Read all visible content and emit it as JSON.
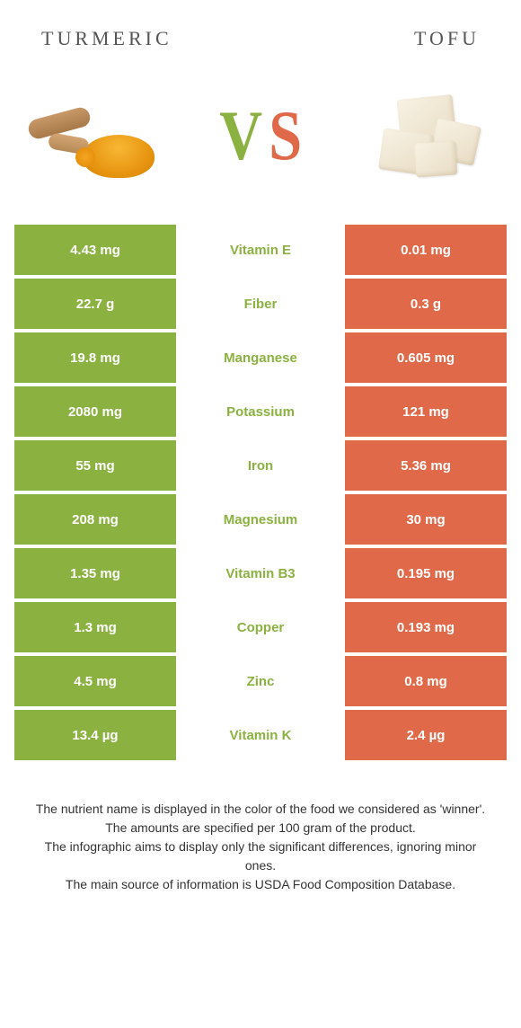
{
  "header": {
    "left": "Turmeric",
    "right": "Tofu"
  },
  "vs": {
    "v": "V",
    "s": "S"
  },
  "colors": {
    "left": "#8bb140",
    "right": "#e0694a",
    "row_alt_darken": 0,
    "vs_v": "#8bb140",
    "vs_s": "#e0694a"
  },
  "table": {
    "rows": [
      {
        "left": "4.43 mg",
        "mid": "Vitamin E",
        "right": "0.01 mg",
        "mid_color": "#8bb140"
      },
      {
        "left": "22.7 g",
        "mid": "Fiber",
        "right": "0.3 g",
        "mid_color": "#8bb140"
      },
      {
        "left": "19.8 mg",
        "mid": "Manganese",
        "right": "0.605 mg",
        "mid_color": "#8bb140"
      },
      {
        "left": "2080 mg",
        "mid": "Potassium",
        "right": "121 mg",
        "mid_color": "#8bb140"
      },
      {
        "left": "55 mg",
        "mid": "Iron",
        "right": "5.36 mg",
        "mid_color": "#8bb140"
      },
      {
        "left": "208 mg",
        "mid": "Magnesium",
        "right": "30 mg",
        "mid_color": "#8bb140"
      },
      {
        "left": "1.35 mg",
        "mid": "Vitamin B3",
        "right": "0.195 mg",
        "mid_color": "#8bb140"
      },
      {
        "left": "1.3 mg",
        "mid": "Copper",
        "right": "0.193 mg",
        "mid_color": "#8bb140"
      },
      {
        "left": "4.5 mg",
        "mid": "Zinc",
        "right": "0.8 mg",
        "mid_color": "#8bb140"
      },
      {
        "left": "13.4 µg",
        "mid": "Vitamin K",
        "right": "2.4 µg",
        "mid_color": "#8bb140"
      }
    ]
  },
  "footnote": {
    "line1": "The nutrient name is displayed in the color of the food we considered as 'winner'.",
    "line2": "The amounts are specified per 100 gram of the product.",
    "line3": "The infographic aims to display only the significant differences, ignoring minor ones.",
    "line4": "The main source of information is USDA Food Composition Database."
  }
}
